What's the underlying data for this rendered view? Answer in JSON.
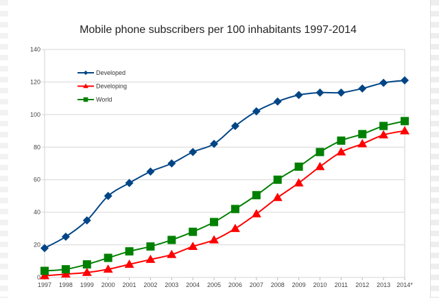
{
  "chart_data": {
    "type": "line",
    "title": "Mobile phone subscribers per 100 inhabitants 1997-2014",
    "xlabel": "",
    "ylabel": "",
    "categories": [
      "1997",
      "1998",
      "1999",
      "2000",
      "2001",
      "2002",
      "2003",
      "2004",
      "2005",
      "2006",
      "2007",
      "2008",
      "2009",
      "2010",
      "2011",
      "2012",
      "2013",
      "2014*"
    ],
    "ylim": [
      0,
      140
    ],
    "yticks": [
      0,
      20,
      40,
      60,
      80,
      100,
      120,
      140
    ],
    "grid": true,
    "legend": "top-left",
    "series": [
      {
        "name": "Developed",
        "color": "#004586",
        "marker": "diamond",
        "values": [
          18,
          25,
          35,
          50,
          58,
          65,
          70,
          77,
          82,
          93,
          102,
          108,
          112,
          113.5,
          113.5,
          116,
          119.5,
          121
        ]
      },
      {
        "name": "Developing",
        "color": "#ff0000",
        "marker": "triangle",
        "values": [
          1,
          2,
          3,
          5,
          8,
          11,
          14,
          19,
          23,
          30,
          39,
          49,
          58,
          68,
          77,
          82,
          87.5,
          90
        ]
      },
      {
        "name": "World",
        "color": "#008000",
        "marker": "square",
        "values": [
          4,
          5,
          8,
          12,
          16,
          19,
          23,
          28,
          34,
          42,
          50.5,
          60,
          68,
          77,
          84,
          88,
          93,
          96
        ]
      }
    ]
  }
}
